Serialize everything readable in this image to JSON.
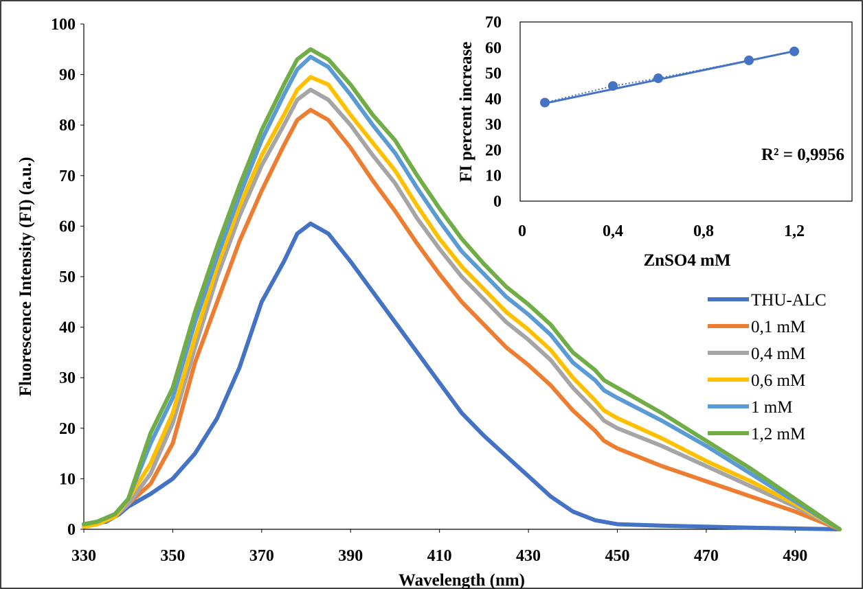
{
  "chart_data": [
    {
      "type": "line",
      "xlabel": "Wavelength (nm)",
      "ylabel": "Fluorescence Intensity (FI) (a.u.)",
      "xlim": [
        330,
        500
      ],
      "ylim": [
        0,
        100
      ],
      "x_ticks": [
        330,
        350,
        370,
        390,
        410,
        430,
        450,
        470,
        490
      ],
      "y_ticks": [
        0,
        10,
        20,
        30,
        40,
        50,
        60,
        70,
        80,
        90,
        100
      ],
      "x_tick_labels": [
        "330",
        "350",
        "370",
        "390",
        "410",
        "430",
        "450",
        "470",
        "490"
      ],
      "y_tick_labels": [
        "0",
        "10",
        "20",
        "30",
        "40",
        "50",
        "60",
        "70",
        "80",
        "90",
        "100"
      ],
      "grid": false,
      "legend_position": "right",
      "series": [
        {
          "name": "THU-ALC",
          "color": "#4472C4",
          "points": [
            [
              330,
              1
            ],
            [
              335,
              1.5
            ],
            [
              338,
              3
            ],
            [
              340,
              4.5
            ],
            [
              345,
              7
            ],
            [
              350,
              10
            ],
            [
              355,
              15
            ],
            [
              360,
              22
            ],
            [
              365,
              32
            ],
            [
              370,
              45
            ],
            [
              375,
              53
            ],
            [
              378,
              58.5
            ],
            [
              381,
              60.5
            ],
            [
              385,
              58.5
            ],
            [
              390,
              53
            ],
            [
              395,
              47
            ],
            [
              400,
              41
            ],
            [
              405,
              35
            ],
            [
              410,
              29
            ],
            [
              415,
              23
            ],
            [
              420,
              18.5
            ],
            [
              425,
              14.5
            ],
            [
              430,
              10.5
            ],
            [
              435,
              6.5
            ],
            [
              440,
              3.5
            ],
            [
              445,
              1.8
            ],
            [
              450,
              1
            ],
            [
              460,
              0.7
            ],
            [
              470,
              0.5
            ],
            [
              480,
              0.3
            ],
            [
              490,
              0.15
            ],
            [
              500,
              0
            ]
          ]
        },
        {
          "name": "0,1 mM",
          "color": "#ED7D31",
          "points": [
            [
              330,
              0.5
            ],
            [
              333,
              1
            ],
            [
              337,
              2.5
            ],
            [
              340,
              5
            ],
            [
              345,
              9
            ],
            [
              350,
              17
            ],
            [
              355,
              33
            ],
            [
              360,
              45
            ],
            [
              365,
              57
            ],
            [
              370,
              67
            ],
            [
              375,
              76
            ],
            [
              378,
              81
            ],
            [
              381,
              83
            ],
            [
              385,
              81
            ],
            [
              390,
              75.5
            ],
            [
              395,
              69
            ],
            [
              400,
              63
            ],
            [
              405,
              56.5
            ],
            [
              410,
              50.5
            ],
            [
              415,
              45
            ],
            [
              420,
              40.5
            ],
            [
              425,
              36
            ],
            [
              430,
              32.5
            ],
            [
              435,
              28.5
            ],
            [
              440,
              23.5
            ],
            [
              445,
              19.5
            ],
            [
              447,
              17.5
            ],
            [
              450,
              16
            ],
            [
              460,
              12.5
            ],
            [
              470,
              9.5
            ],
            [
              480,
              6.5
            ],
            [
              490,
              3.5
            ],
            [
              500,
              0
            ]
          ]
        },
        {
          "name": "0,4 mM",
          "color": "#A5A5A5",
          "points": [
            [
              330,
              0.5
            ],
            [
              333,
              1
            ],
            [
              337,
              2.5
            ],
            [
              340,
              5
            ],
            [
              345,
              11
            ],
            [
              350,
              21
            ],
            [
              355,
              36
            ],
            [
              360,
              50
            ],
            [
              365,
              62
            ],
            [
              370,
              72
            ],
            [
              375,
              80
            ],
            [
              378,
              85
            ],
            [
              381,
              87
            ],
            [
              385,
              85
            ],
            [
              390,
              80
            ],
            [
              395,
              74
            ],
            [
              400,
              68.5
            ],
            [
              405,
              61.5
            ],
            [
              410,
              55.5
            ],
            [
              415,
              50
            ],
            [
              420,
              45.5
            ],
            [
              425,
              41
            ],
            [
              430,
              37.5
            ],
            [
              435,
              33.5
            ],
            [
              440,
              28
            ],
            [
              445,
              23.5
            ],
            [
              447,
              21.5
            ],
            [
              450,
              20
            ],
            [
              460,
              16.5
            ],
            [
              470,
              12.5
            ],
            [
              480,
              8.5
            ],
            [
              490,
              4.5
            ],
            [
              500,
              0
            ]
          ]
        },
        {
          "name": "0,6 mM",
          "color": "#FFC000",
          "points": [
            [
              330,
              0.5
            ],
            [
              333,
              1
            ],
            [
              337,
              2.5
            ],
            [
              340,
              6
            ],
            [
              345,
              13
            ],
            [
              350,
              23
            ],
            [
              355,
              38
            ],
            [
              360,
              52
            ],
            [
              365,
              64
            ],
            [
              370,
              74
            ],
            [
              375,
              82
            ],
            [
              378,
              87
            ],
            [
              381,
              89.5
            ],
            [
              385,
              88
            ],
            [
              390,
              82
            ],
            [
              395,
              76.5
            ],
            [
              400,
              71
            ],
            [
              405,
              64
            ],
            [
              410,
              57.5
            ],
            [
              415,
              52
            ],
            [
              420,
              47.5
            ],
            [
              425,
              43
            ],
            [
              430,
              39.5
            ],
            [
              435,
              35.5
            ],
            [
              440,
              30
            ],
            [
              445,
              25.5
            ],
            [
              447,
              23.5
            ],
            [
              450,
              22
            ],
            [
              460,
              18
            ],
            [
              470,
              13.5
            ],
            [
              480,
              9.5
            ],
            [
              490,
              5
            ],
            [
              500,
              0
            ]
          ]
        },
        {
          "name": "1 mM",
          "color": "#5B9BD5",
          "points": [
            [
              330,
              1
            ],
            [
              333,
              1.5
            ],
            [
              337,
              3
            ],
            [
              340,
              6
            ],
            [
              345,
              17
            ],
            [
              350,
              26
            ],
            [
              355,
              41
            ],
            [
              360,
              54
            ],
            [
              365,
              66
            ],
            [
              370,
              77
            ],
            [
              375,
              86
            ],
            [
              378,
              91
            ],
            [
              381,
              93.5
            ],
            [
              385,
              91.5
            ],
            [
              390,
              86
            ],
            [
              395,
              80
            ],
            [
              400,
              74.5
            ],
            [
              405,
              67.5
            ],
            [
              410,
              61
            ],
            [
              415,
              55
            ],
            [
              420,
              50.5
            ],
            [
              425,
              46
            ],
            [
              430,
              42.5
            ],
            [
              435,
              38.5
            ],
            [
              440,
              33
            ],
            [
              445,
              29.5
            ],
            [
              447,
              27.5
            ],
            [
              450,
              26
            ],
            [
              460,
              21.5
            ],
            [
              470,
              16.5
            ],
            [
              480,
              11
            ],
            [
              490,
              5.5
            ],
            [
              500,
              0
            ]
          ]
        },
        {
          "name": "1,2 mM",
          "color": "#70AD47",
          "points": [
            [
              330,
              1
            ],
            [
              333,
              1.5
            ],
            [
              337,
              3
            ],
            [
              340,
              6
            ],
            [
              345,
              19
            ],
            [
              350,
              28
            ],
            [
              355,
              43
            ],
            [
              360,
              56
            ],
            [
              365,
              68
            ],
            [
              370,
              79
            ],
            [
              375,
              88
            ],
            [
              378,
              93
            ],
            [
              381,
              95
            ],
            [
              385,
              93
            ],
            [
              390,
              88
            ],
            [
              395,
              82
            ],
            [
              400,
              77
            ],
            [
              405,
              70
            ],
            [
              410,
              63.5
            ],
            [
              415,
              57.5
            ],
            [
              420,
              52.5
            ],
            [
              425,
              48
            ],
            [
              430,
              44.5
            ],
            [
              435,
              40.5
            ],
            [
              440,
              35
            ],
            [
              445,
              31.5
            ],
            [
              447,
              29.5
            ],
            [
              450,
              28
            ],
            [
              460,
              23
            ],
            [
              470,
              17.5
            ],
            [
              480,
              12
            ],
            [
              490,
              6
            ],
            [
              500,
              0
            ]
          ]
        }
      ]
    },
    {
      "type": "scatter",
      "xlabel": "ZnSO4 mM",
      "ylabel": "FI percent increase",
      "xlim": [
        0,
        1.4
      ],
      "ylim": [
        0,
        70
      ],
      "x_ticks": [
        0,
        0.4,
        0.8,
        1.2
      ],
      "y_ticks": [
        0,
        10,
        20,
        30,
        40,
        50,
        60,
        70
      ],
      "x_tick_labels": [
        "0",
        "0,4",
        "0,8",
        "1,2"
      ],
      "y_tick_labels": [
        "0",
        "10",
        "20",
        "30",
        "40",
        "50",
        "60",
        "70"
      ],
      "points": [
        [
          0.1,
          38.5
        ],
        [
          0.4,
          45
        ],
        [
          0.6,
          48
        ],
        [
          1.0,
          55
        ],
        [
          1.2,
          58.5
        ]
      ],
      "trendline": {
        "x0": 0.1,
        "y0": 38.2,
        "x1": 1.2,
        "y1": 58.6
      },
      "annotation": "R² = 0,9956",
      "color": "#4472C4"
    }
  ]
}
